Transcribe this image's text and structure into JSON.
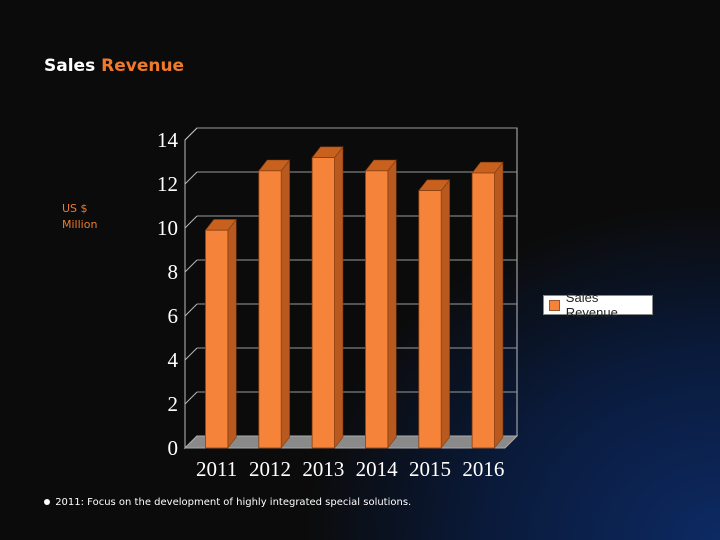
{
  "slide": {
    "title_word1": "Sales",
    "title_word2": "Revenue",
    "y_unit_line1": "US $",
    "y_unit_line2": "Million",
    "note_text": "2011: Focus on the development of highly integrated special solutions."
  },
  "colors": {
    "bar_front": "#f5833a",
    "bar_top": "#c8601e",
    "bar_side": "#b85a1f",
    "title_accent": "#f07a2c"
  },
  "chart_data": {
    "type": "bar",
    "title": "",
    "xlabel": "",
    "ylabel": "US $ Million",
    "categories": [
      "2011",
      "2012",
      "2013",
      "2014",
      "2015",
      "2016"
    ],
    "series": [
      {
        "name": "Sales Revenue",
        "values": [
          9.9,
          12.6,
          13.2,
          12.6,
          11.7,
          12.5
        ]
      }
    ],
    "y_ticks": [
      "0",
      "2",
      "4",
      "6",
      "8",
      "10",
      "12",
      "14"
    ],
    "ylim": [
      0,
      14
    ],
    "grid": true,
    "legend": "right",
    "style": "3d"
  }
}
